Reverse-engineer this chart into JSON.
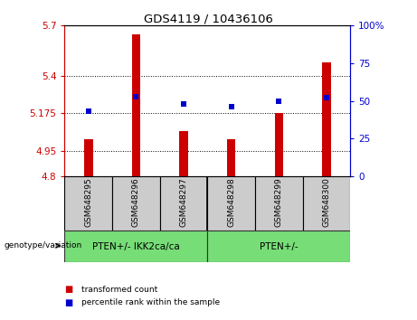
{
  "title": "GDS4119 / 10436106",
  "samples": [
    "GSM648295",
    "GSM648296",
    "GSM648297",
    "GSM648298",
    "GSM648299",
    "GSM648300"
  ],
  "red_values": [
    5.02,
    5.65,
    5.07,
    5.02,
    5.175,
    5.48
  ],
  "blue_values": [
    43,
    53,
    48,
    46,
    50,
    52
  ],
  "ylim_left": [
    4.8,
    5.7
  ],
  "ylim_right": [
    0,
    100
  ],
  "yticks_left": [
    4.8,
    4.95,
    5.175,
    5.4,
    5.7
  ],
  "yticks_right": [
    0,
    25,
    50,
    75,
    100
  ],
  "ytick_labels_left": [
    "4.8",
    "4.95",
    "5.175",
    "5.4",
    "5.7"
  ],
  "ytick_labels_right": [
    "0",
    "25",
    "50",
    "75",
    "100%"
  ],
  "hlines": [
    5.4,
    5.175,
    4.95
  ],
  "group1_label": "PTEN+/- IKK2ca/ca",
  "group2_label": "PTEN+/-",
  "bar_color": "#cc0000",
  "dot_color": "#0000cc",
  "sample_bg": "#cccccc",
  "group_color": "#77dd77",
  "plot_bg": "#ffffff",
  "legend_red": "transformed count",
  "legend_blue": "percentile rank within the sample",
  "genotype_label": "genotype/variation",
  "base_value": 4.8
}
